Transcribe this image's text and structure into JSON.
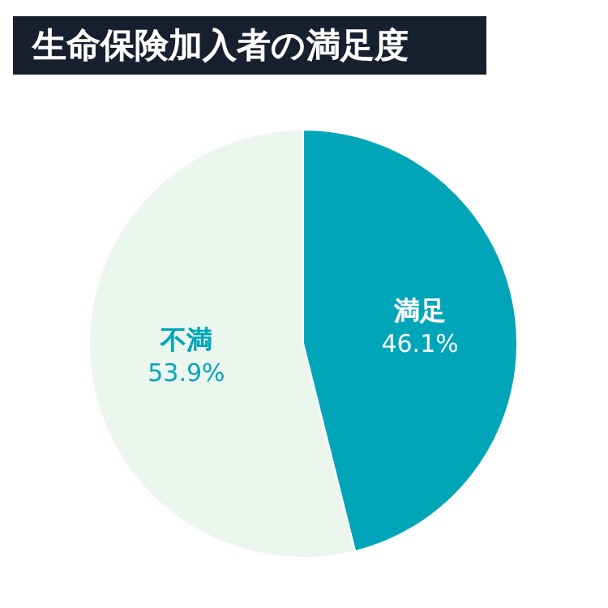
{
  "chart_data": {
    "type": "pie",
    "title": "生命保険加入者の満足度",
    "categories": [
      "満足",
      "不満"
    ],
    "values": [
      46.1,
      53.9
    ],
    "colors": [
      "#00a6b8",
      "#ebf6ef"
    ],
    "value_labels": [
      "46.1%",
      "53.9%"
    ]
  }
}
